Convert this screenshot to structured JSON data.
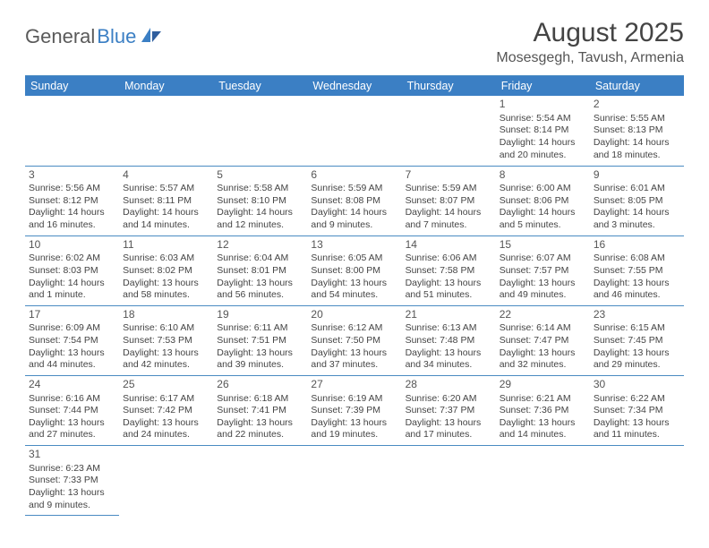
{
  "logo": {
    "text1": "General",
    "text2": "Blue"
  },
  "title": "August 2025",
  "subtitle": "Mosesgegh, Tavush, Armenia",
  "colors": {
    "header_bg": "#3b7fc4",
    "header_text": "#ffffff",
    "rule": "#4a8bc2",
    "body_text": "#444444",
    "logo_gray": "#5a5a5a",
    "logo_blue": "#3b7fc4"
  },
  "weekdays": [
    "Sunday",
    "Monday",
    "Tuesday",
    "Wednesday",
    "Thursday",
    "Friday",
    "Saturday"
  ],
  "weeks": [
    [
      null,
      null,
      null,
      null,
      null,
      {
        "n": "1",
        "sr": "5:54 AM",
        "ss": "8:14 PM",
        "dl": "14 hours and 20 minutes."
      },
      {
        "n": "2",
        "sr": "5:55 AM",
        "ss": "8:13 PM",
        "dl": "14 hours and 18 minutes."
      }
    ],
    [
      {
        "n": "3",
        "sr": "5:56 AM",
        "ss": "8:12 PM",
        "dl": "14 hours and 16 minutes."
      },
      {
        "n": "4",
        "sr": "5:57 AM",
        "ss": "8:11 PM",
        "dl": "14 hours and 14 minutes."
      },
      {
        "n": "5",
        "sr": "5:58 AM",
        "ss": "8:10 PM",
        "dl": "14 hours and 12 minutes."
      },
      {
        "n": "6",
        "sr": "5:59 AM",
        "ss": "8:08 PM",
        "dl": "14 hours and 9 minutes."
      },
      {
        "n": "7",
        "sr": "5:59 AM",
        "ss": "8:07 PM",
        "dl": "14 hours and 7 minutes."
      },
      {
        "n": "8",
        "sr": "6:00 AM",
        "ss": "8:06 PM",
        "dl": "14 hours and 5 minutes."
      },
      {
        "n": "9",
        "sr": "6:01 AM",
        "ss": "8:05 PM",
        "dl": "14 hours and 3 minutes."
      }
    ],
    [
      {
        "n": "10",
        "sr": "6:02 AM",
        "ss": "8:03 PM",
        "dl": "14 hours and 1 minute."
      },
      {
        "n": "11",
        "sr": "6:03 AM",
        "ss": "8:02 PM",
        "dl": "13 hours and 58 minutes."
      },
      {
        "n": "12",
        "sr": "6:04 AM",
        "ss": "8:01 PM",
        "dl": "13 hours and 56 minutes."
      },
      {
        "n": "13",
        "sr": "6:05 AM",
        "ss": "8:00 PM",
        "dl": "13 hours and 54 minutes."
      },
      {
        "n": "14",
        "sr": "6:06 AM",
        "ss": "7:58 PM",
        "dl": "13 hours and 51 minutes."
      },
      {
        "n": "15",
        "sr": "6:07 AM",
        "ss": "7:57 PM",
        "dl": "13 hours and 49 minutes."
      },
      {
        "n": "16",
        "sr": "6:08 AM",
        "ss": "7:55 PM",
        "dl": "13 hours and 46 minutes."
      }
    ],
    [
      {
        "n": "17",
        "sr": "6:09 AM",
        "ss": "7:54 PM",
        "dl": "13 hours and 44 minutes."
      },
      {
        "n": "18",
        "sr": "6:10 AM",
        "ss": "7:53 PM",
        "dl": "13 hours and 42 minutes."
      },
      {
        "n": "19",
        "sr": "6:11 AM",
        "ss": "7:51 PM",
        "dl": "13 hours and 39 minutes."
      },
      {
        "n": "20",
        "sr": "6:12 AM",
        "ss": "7:50 PM",
        "dl": "13 hours and 37 minutes."
      },
      {
        "n": "21",
        "sr": "6:13 AM",
        "ss": "7:48 PM",
        "dl": "13 hours and 34 minutes."
      },
      {
        "n": "22",
        "sr": "6:14 AM",
        "ss": "7:47 PM",
        "dl": "13 hours and 32 minutes."
      },
      {
        "n": "23",
        "sr": "6:15 AM",
        "ss": "7:45 PM",
        "dl": "13 hours and 29 minutes."
      }
    ],
    [
      {
        "n": "24",
        "sr": "6:16 AM",
        "ss": "7:44 PM",
        "dl": "13 hours and 27 minutes."
      },
      {
        "n": "25",
        "sr": "6:17 AM",
        "ss": "7:42 PM",
        "dl": "13 hours and 24 minutes."
      },
      {
        "n": "26",
        "sr": "6:18 AM",
        "ss": "7:41 PM",
        "dl": "13 hours and 22 minutes."
      },
      {
        "n": "27",
        "sr": "6:19 AM",
        "ss": "7:39 PM",
        "dl": "13 hours and 19 minutes."
      },
      {
        "n": "28",
        "sr": "6:20 AM",
        "ss": "7:37 PM",
        "dl": "13 hours and 17 minutes."
      },
      {
        "n": "29",
        "sr": "6:21 AM",
        "ss": "7:36 PM",
        "dl": "13 hours and 14 minutes."
      },
      {
        "n": "30",
        "sr": "6:22 AM",
        "ss": "7:34 PM",
        "dl": "13 hours and 11 minutes."
      }
    ],
    [
      {
        "n": "31",
        "sr": "6:23 AM",
        "ss": "7:33 PM",
        "dl": "13 hours and 9 minutes."
      },
      null,
      null,
      null,
      null,
      null,
      null
    ]
  ],
  "labels": {
    "sunrise": "Sunrise: ",
    "sunset": "Sunset: ",
    "daylight": "Daylight: "
  }
}
